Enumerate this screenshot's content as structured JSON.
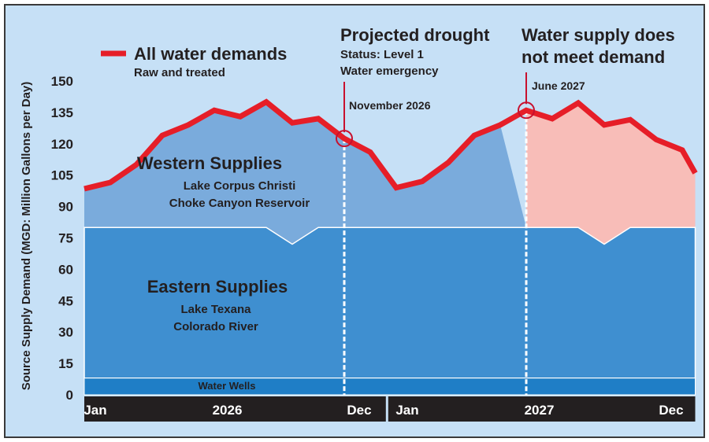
{
  "chart_data": {
    "type": "area",
    "ylabel": "Source Supply Demand (MGD: Million Gallons per Day)",
    "yticks": [
      0,
      15,
      30,
      45,
      60,
      75,
      90,
      105,
      120,
      135,
      150
    ],
    "ylim": [
      0,
      150
    ],
    "x_labels": [
      {
        "month": 1,
        "label": "Jan"
      },
      {
        "month": 6.5,
        "label": "2026"
      },
      {
        "month": 12,
        "label": "Dec"
      },
      {
        "month": 13,
        "label": "Jan"
      },
      {
        "month": 18.5,
        "label": "2027"
      },
      {
        "month": 24,
        "label": "Dec"
      }
    ],
    "demand_series": {
      "name": "All water demands",
      "subtitle": "Raw and treated",
      "color": "#e61e28",
      "x": [
        1,
        2,
        3,
        4,
        5,
        6,
        7,
        8,
        9,
        10,
        11,
        12,
        13,
        14,
        15,
        16,
        17,
        18,
        19,
        20,
        21,
        22,
        23,
        24,
        24.5
      ],
      "values": [
        98.5,
        101.5,
        110,
        124,
        129,
        136,
        133,
        140,
        130,
        132,
        122.5,
        116,
        99,
        102,
        111,
        124,
        129,
        136,
        132,
        139.5,
        129,
        131.5,
        122,
        117,
        106
      ]
    },
    "western_supplies": {
      "name": "Western Supplies",
      "sources": [
        "Lake Corpus Christi",
        "Choke Canyon Reservoir"
      ],
      "color": "#7aabdc",
      "note": "equals demand until May 2027, falls to eastern level by June 2027"
    },
    "eastern_supplies": {
      "name": "Eastern Supplies",
      "sources": [
        "Lake Texana",
        "Colorado River"
      ],
      "color": "#3f8fd0",
      "x": [
        1,
        8,
        9,
        10,
        13,
        20,
        21,
        22,
        24.5
      ],
      "values": [
        80,
        80,
        72,
        80,
        80,
        80,
        72,
        80,
        80
      ]
    },
    "water_wells": {
      "name": "Water Wells",
      "value": 8,
      "color": "#1f7ec6"
    },
    "shortfall_color": "#f8bdb8",
    "annotations": [
      {
        "month": 11,
        "value": 122.5,
        "label": "November 2026",
        "title": "Projected drought",
        "lines": [
          "Status: Level 1",
          "Water emergency"
        ]
      },
      {
        "month": 18,
        "value": 136,
        "label": "June 2027",
        "title": "Water supply does",
        "lines": [
          "not meet demand"
        ]
      }
    ],
    "background_color": "#c6e0f6"
  }
}
